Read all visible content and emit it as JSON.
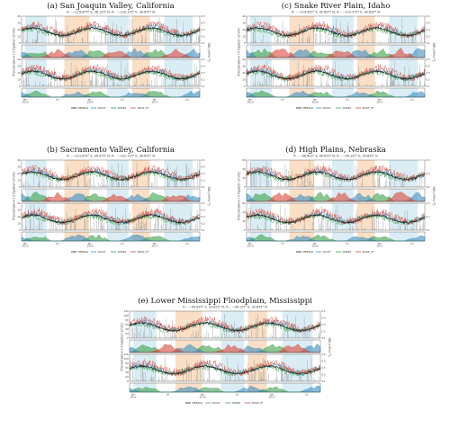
{
  "figure": {
    "ylabel_precip": "Precipitation / Irrigation (mm)",
    "ylabel_sm": "SM (m³m⁻³)",
    "legend": [
      "MERRA2",
      "ASCAT",
      "AMSR2",
      "SMAP_VF"
    ],
    "colors": {
      "merra2": "#1a1a1a",
      "ascat": "#3c8dbf",
      "amsr2": "#3aa04a",
      "smap": "#d9473a",
      "bar": "#8a8a8a",
      "shade_orange": "#f8dcc0",
      "shade_blue": "#d6ebf4",
      "fill_green": "#8fcf95",
      "fill_blue": "#8ea7cf",
      "fill_red": "#e6a39c"
    }
  },
  "chart_data": [
    {
      "type": "line",
      "label": "(a)",
      "title": "San Joaquin Valley, California",
      "coords": "P₁ : −119.875° E, 36.125° N, P₂ : −120.125° E, 36.875° N",
      "x_ticks": [
        "Jan\n2015",
        "Jul",
        "Jan\n2016",
        "Jul",
        "Jan\n2017",
        "Jul"
      ],
      "y_left_ticks": [
        "0",
        "10",
        "20",
        "30",
        "40"
      ],
      "y_right_ticks": [
        "0.1",
        "0.2",
        "0.3",
        "0.4",
        "0.5"
      ]
    },
    {
      "type": "line",
      "label": "(b)",
      "title": "Sacramento Valley, California",
      "coords": "P₁ : −121.875° E, 39.375° N, P₂ : −122.125° E, 38.875° N",
      "x_ticks": [
        "Jan\n2015",
        "Jul",
        "Jan\n2016",
        "Jul",
        "Jan\n2017",
        "Jul"
      ],
      "y_left_ticks": [
        "0",
        "10",
        "20",
        "30",
        "40"
      ],
      "y_right_ticks": [
        "0.1",
        "0.2",
        "0.3",
        "0.4",
        "0.5"
      ]
    },
    {
      "type": "line",
      "label": "(c)",
      "title": "Snake River Plain, Idaho",
      "coords": "P₁ : −114.625° E, 42.625° N, P₂ : −115.375° E, 42.625° N",
      "x_ticks": [
        "Jan\n2015",
        "Jul",
        "Jan\n2016",
        "Jul",
        "Jan\n2017",
        "Jul"
      ],
      "y_left_ticks": [
        "0",
        "10",
        "20",
        "30",
        "40"
      ],
      "y_right_ticks": [
        "0.1",
        "0.2",
        "0.3",
        "0.4",
        "0.5"
      ]
    },
    {
      "type": "line",
      "label": "(d)",
      "title": "High Plains, Nebraska",
      "coords": "P₁ : −98.625° E, 40.625° N, P₂ : −99.125° E, 39.875° N",
      "x_ticks": [
        "Jan\n2015",
        "Jul",
        "Jan\n2016",
        "Jul",
        "Jan\n2017",
        "Jul"
      ],
      "y_left_ticks": [
        "0",
        "20",
        "40",
        "60"
      ],
      "y_right_ticks": [
        "0.1",
        "0.2",
        "0.3"
      ]
    },
    {
      "type": "line",
      "label": "(e)",
      "title": "Lower Mississippi Floodplain, Mississippi",
      "coords": "P₁ : −90.875° E, 33.625° N, P₂ : −90.125° E, 32.875° N",
      "x_ticks": [
        "Jan\n2015",
        "Jul",
        "Jan\n2016",
        "Jul",
        "Jan\n2017",
        "Jul"
      ],
      "y_left_ticks": [
        "0",
        "20",
        "40",
        "60",
        "80",
        "100",
        "120"
      ],
      "y_right_ticks": [
        "0.1",
        "0.2",
        "0.3",
        "0.4",
        "0.5"
      ]
    }
  ]
}
